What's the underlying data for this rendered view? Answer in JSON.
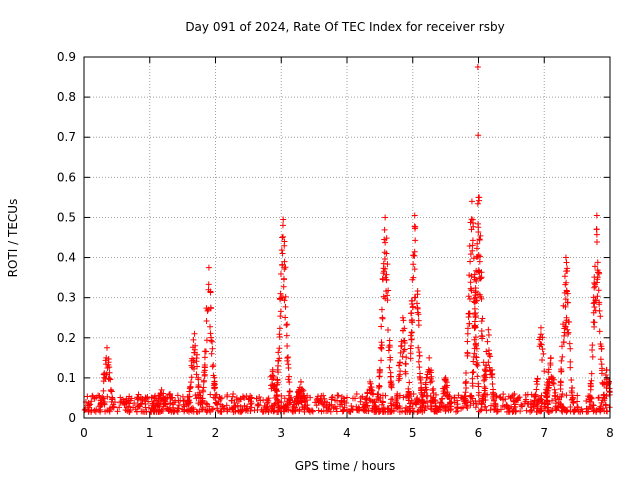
{
  "chart_data": {
    "type": "scatter",
    "title": "Day 091 of 2024, Rate Of TEC Index for receiver rsby",
    "xlabel": "GPS time / hours",
    "ylabel": "ROTI / TECUs",
    "xlim": [
      0,
      8
    ],
    "ylim": [
      0,
      0.9
    ],
    "xticks": [
      "0",
      "1",
      "2",
      "3",
      "4",
      "5",
      "6",
      "7",
      "8"
    ],
    "yticks": [
      "0",
      "0.1",
      "0.2",
      "0.3",
      "0.4",
      "0.5",
      "0.6",
      "0.7",
      "0.8",
      "0.9"
    ],
    "grid": true,
    "marker": "+",
    "marker_color": "#ff0000",
    "background_level": [
      0.015,
      0.06
    ],
    "series": [
      {
        "name": "ROTI",
        "peaks": [
          {
            "t": 0.35,
            "v": 0.175
          },
          {
            "t": 1.18,
            "v": 0.07
          },
          {
            "t": 1.68,
            "v": 0.21
          },
          {
            "t": 1.9,
            "v": 0.375
          },
          {
            "t": 2.87,
            "v": 0.12
          },
          {
            "t": 3.03,
            "v": 0.495
          },
          {
            "t": 3.3,
            "v": 0.09
          },
          {
            "t": 4.35,
            "v": 0.09
          },
          {
            "t": 4.58,
            "v": 0.5
          },
          {
            "t": 4.85,
            "v": 0.25
          },
          {
            "t": 5.03,
            "v": 0.505
          },
          {
            "t": 5.25,
            "v": 0.15
          },
          {
            "t": 5.5,
            "v": 0.1
          },
          {
            "t": 5.9,
            "v": 0.54
          },
          {
            "t": 6.0,
            "v": 0.55
          },
          {
            "t": 6.15,
            "v": 0.22
          },
          {
            "t": 6.95,
            "v": 0.225
          },
          {
            "t": 7.1,
            "v": 0.15
          },
          {
            "t": 7.33,
            "v": 0.4
          },
          {
            "t": 7.8,
            "v": 0.505
          },
          {
            "t": 7.95,
            "v": 0.12
          }
        ],
        "outliers": [
          {
            "t": 5.99,
            "v": 0.875
          },
          {
            "t": 5.995,
            "v": 0.705
          },
          {
            "t": 6.01,
            "v": 0.55
          },
          {
            "t": 6.02,
            "v": 0.39
          },
          {
            "t": 3.3,
            "v": 0.09
          }
        ]
      }
    ]
  }
}
